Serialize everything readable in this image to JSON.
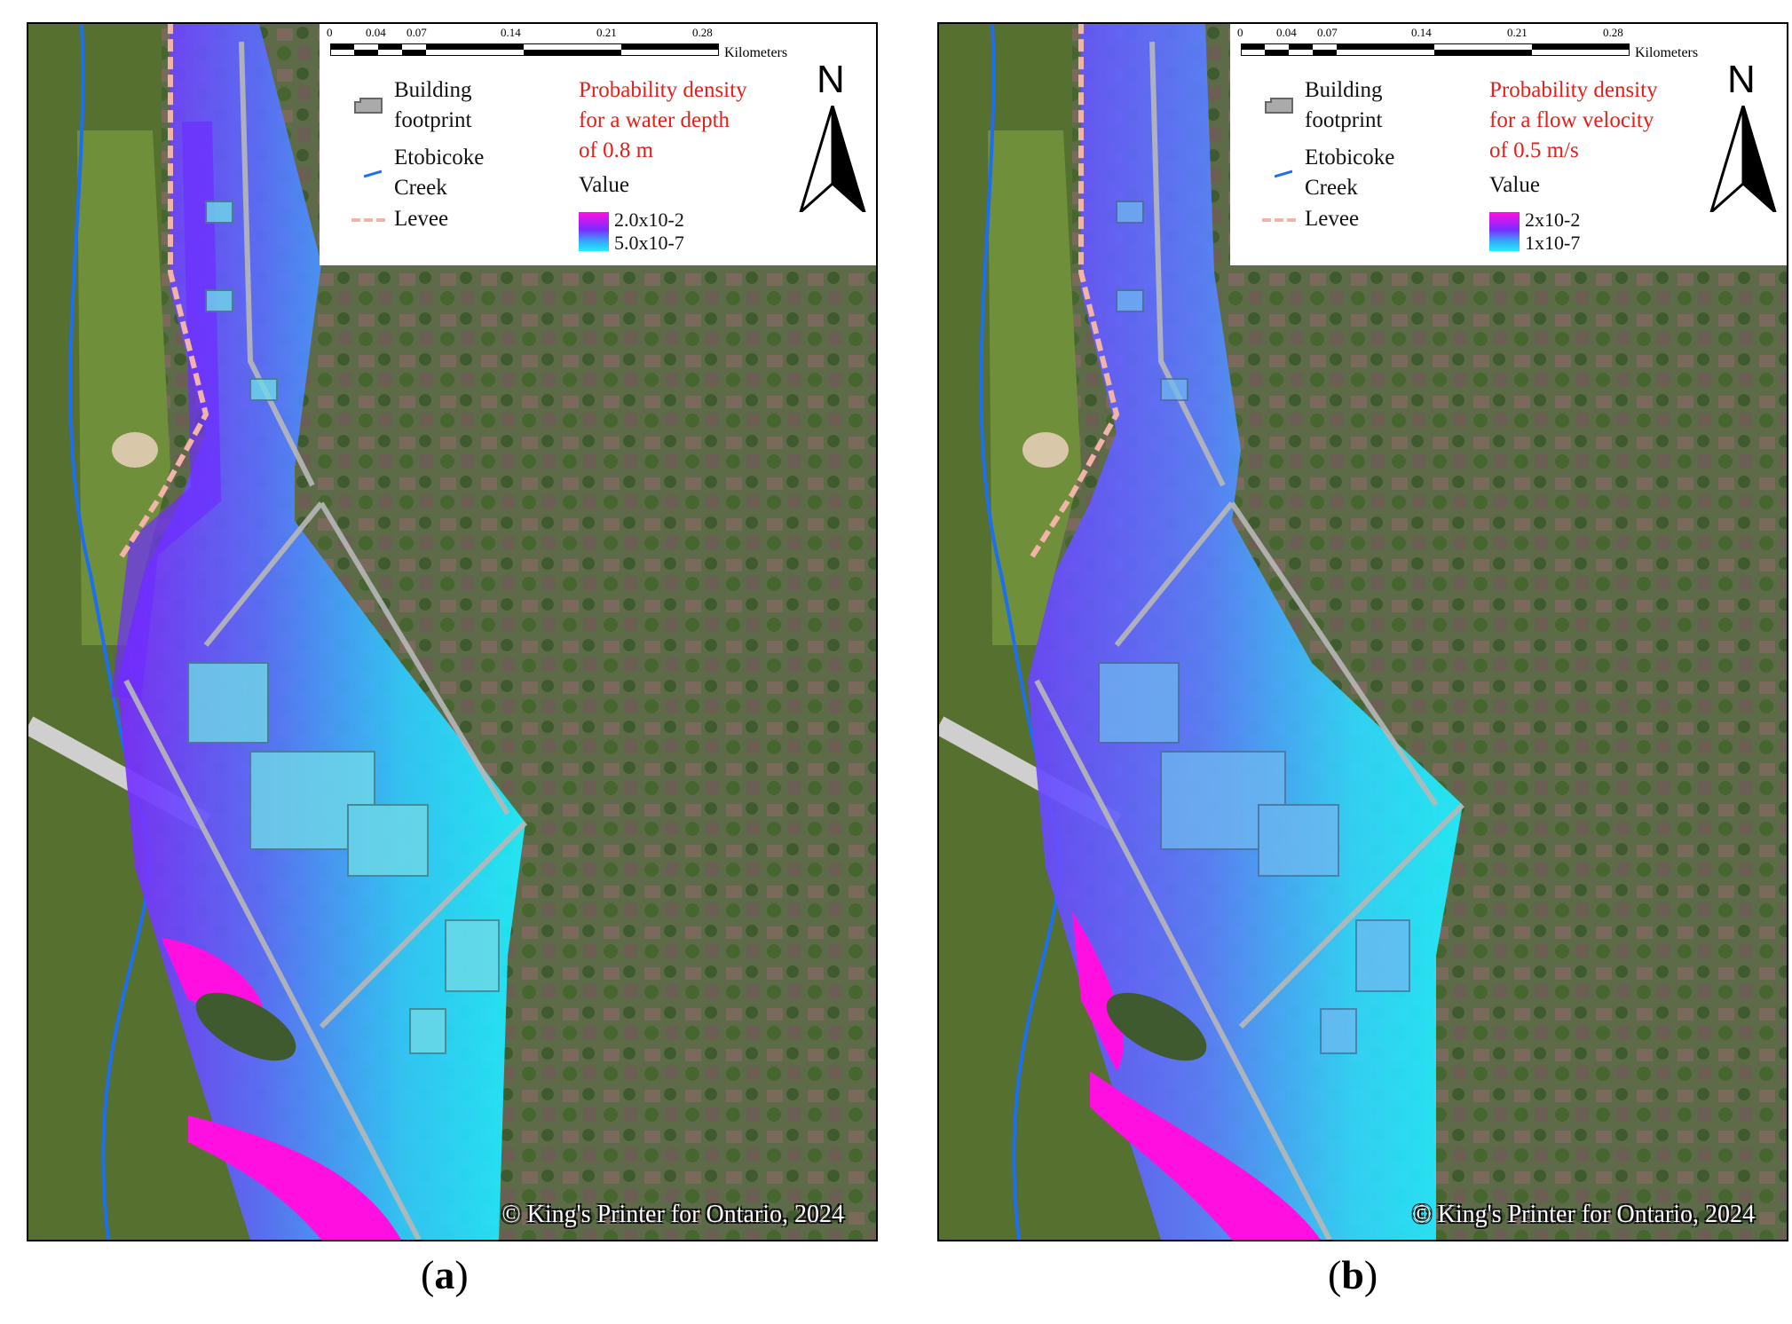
{
  "panels": [
    {
      "id": "a",
      "label_open": "(",
      "label_letter": "a",
      "label_close": ")",
      "legend": {
        "building_line1": "Building",
        "building_line2": "footprint",
        "creek_line1": "Etobicoke",
        "creek_line2": "Creek",
        "levee": "Levee",
        "title_line1": "Probability density",
        "title_line2": "for a water depth",
        "title_line3": "of 0.8 m",
        "value_heading": "Value",
        "high": "2.0x10-2",
        "low": "5.0x10-7"
      },
      "scale": {
        "ticks": [
          "0",
          "0.04",
          "0.07",
          "0.14",
          "0.21",
          "0.28"
        ],
        "unit": "Kilometers"
      },
      "north": "N",
      "copyright": "© King's Printer for Ontario, 2024"
    },
    {
      "id": "b",
      "label_open": "(",
      "label_letter": "b",
      "label_close": ")",
      "legend": {
        "building_line1": "Building",
        "building_line2": "footprint",
        "creek_line1": "Etobicoke",
        "creek_line2": "Creek",
        "levee": "Levee",
        "title_line1": "Probability density",
        "title_line2": "for a flow velocity",
        "title_line3": "of 0.5 m/s",
        "value_heading": "Value",
        "high": "2x10-2",
        "low": "1x10-7"
      },
      "scale": {
        "ticks": [
          "0",
          "0.04",
          "0.07",
          "0.14",
          "0.21",
          "0.28"
        ],
        "unit": "Kilometers"
      },
      "north": "N",
      "copyright": "© King's Printer for Ontario, 2024"
    }
  ],
  "colors": {
    "high_density": "#ff10e0",
    "mid_density": "#7a2bff",
    "low_density": "#1ef0ff",
    "creek": "#1e6ef0",
    "levee": "#f2b4a8",
    "legend_title": "#e0201a"
  }
}
